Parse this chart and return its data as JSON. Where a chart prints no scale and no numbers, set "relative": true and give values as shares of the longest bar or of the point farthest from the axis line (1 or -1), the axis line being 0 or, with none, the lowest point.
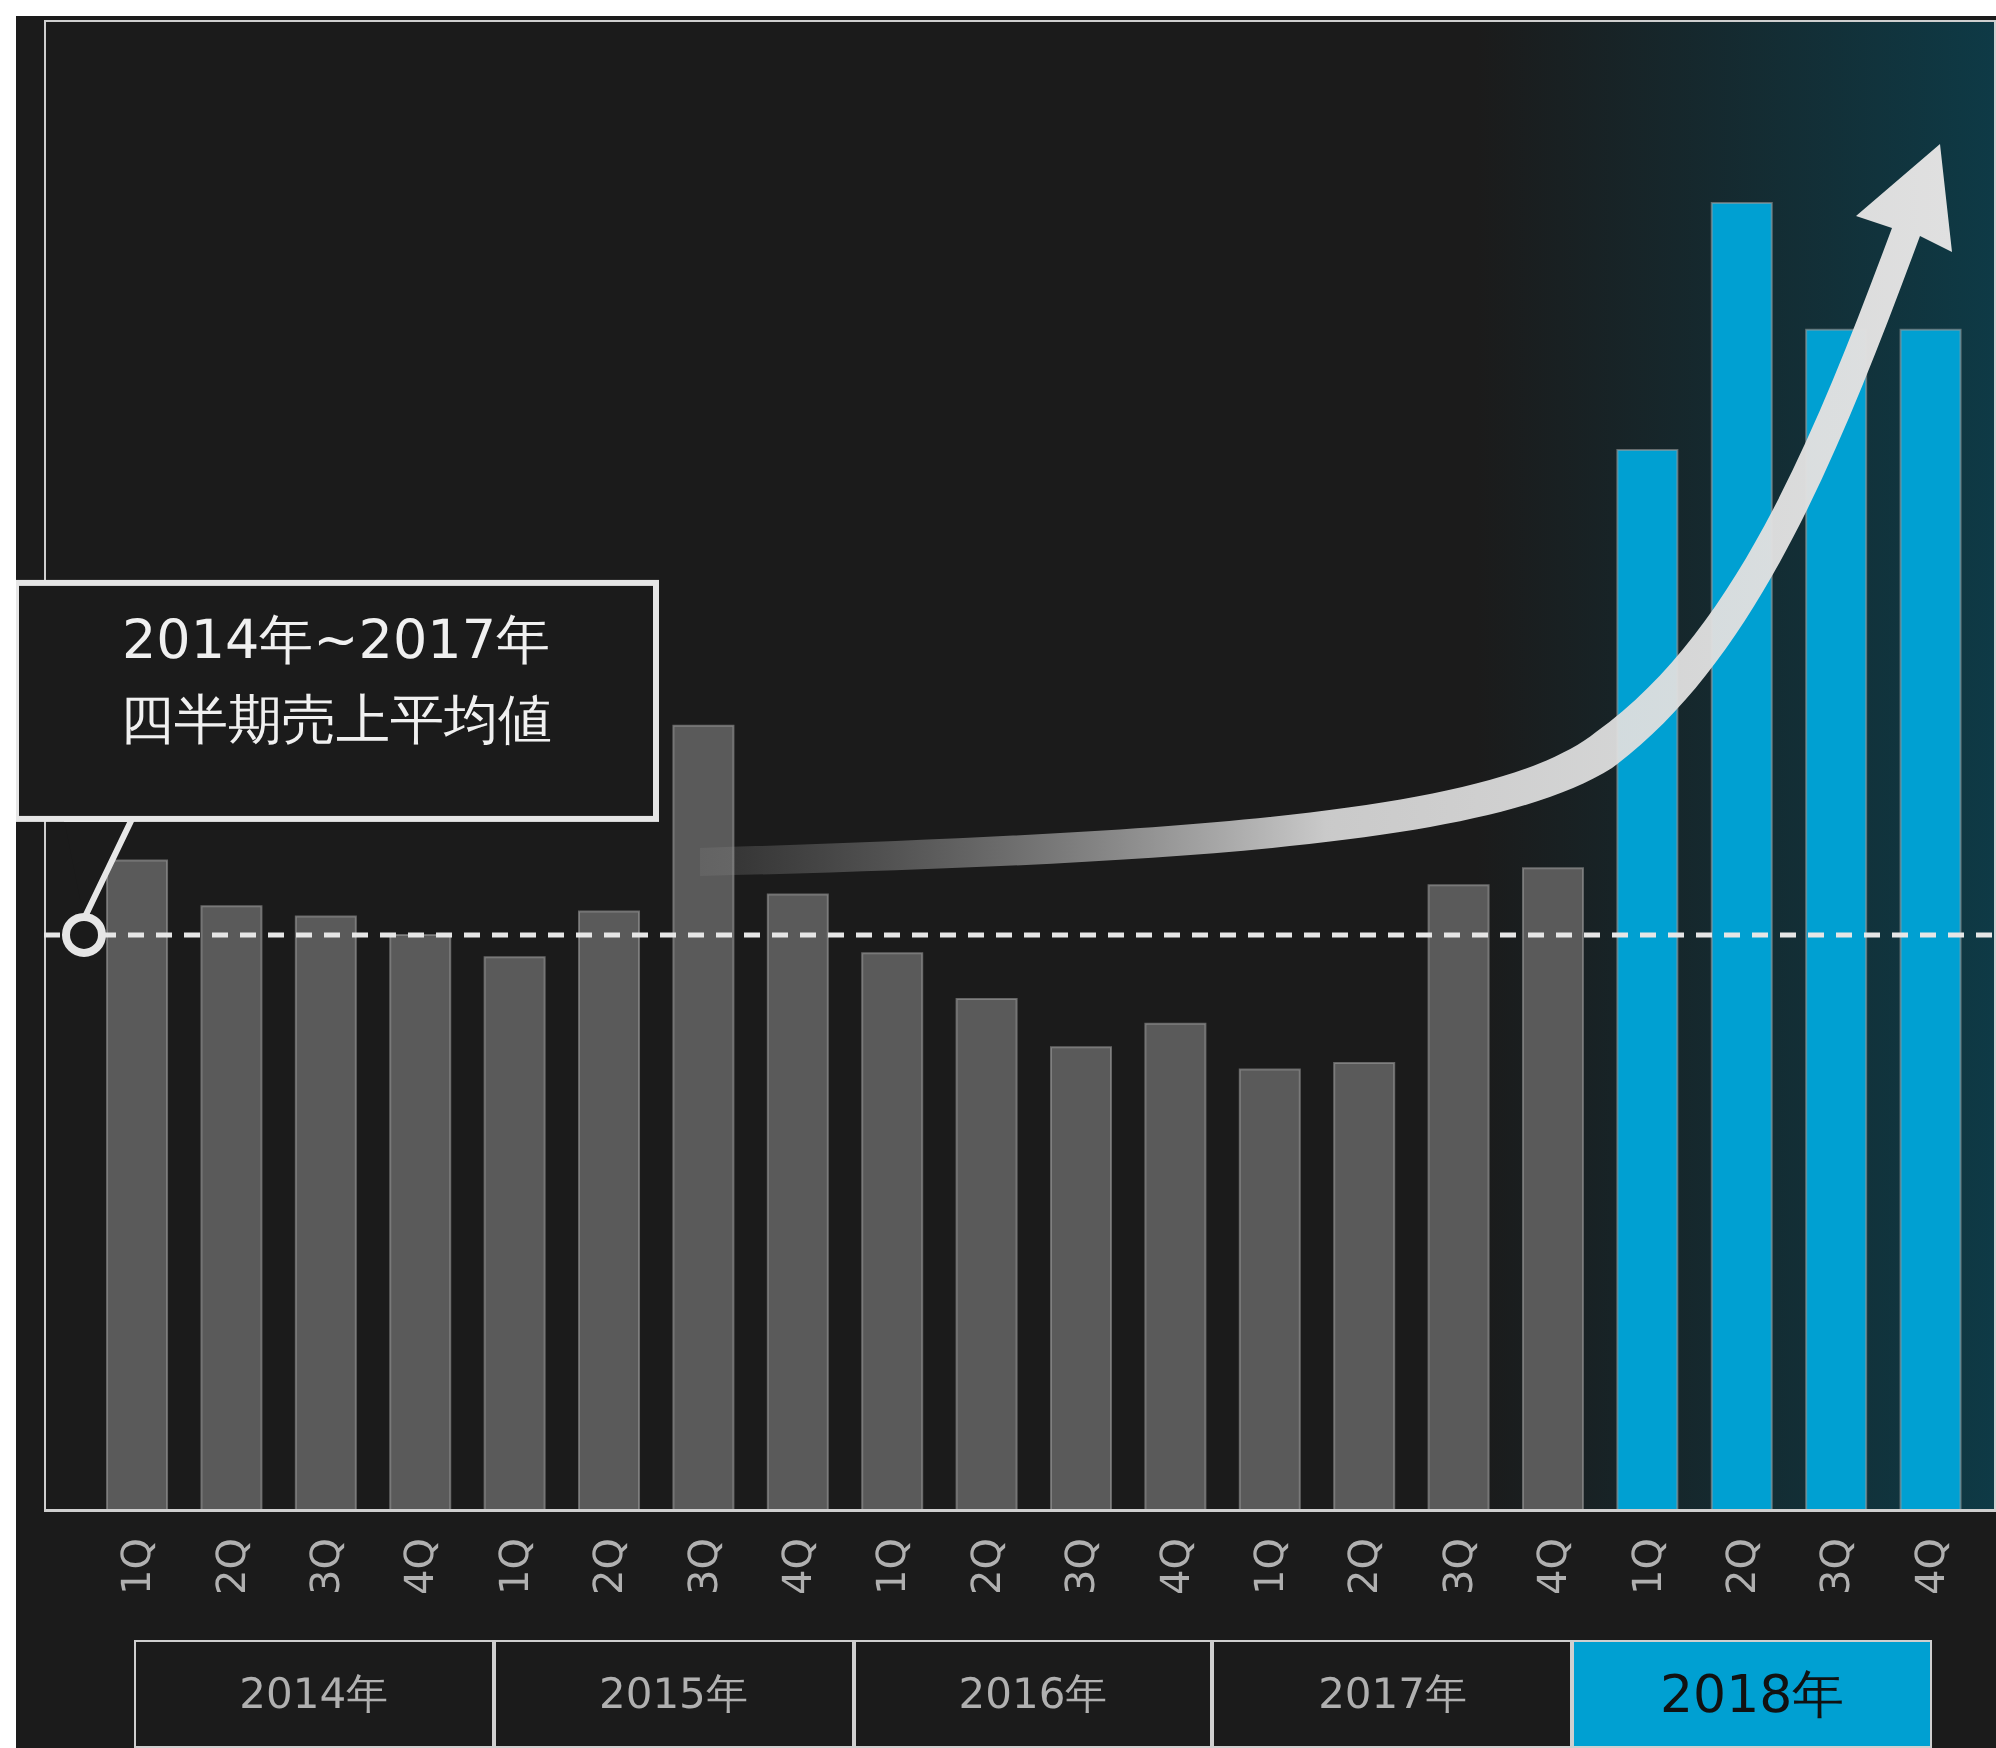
{
  "chart_data": {
    "type": "bar",
    "relative": true,
    "categories": [
      "1Q",
      "2Q",
      "3Q",
      "4Q",
      "1Q",
      "2Q",
      "3Q",
      "4Q",
      "1Q",
      "2Q",
      "3Q",
      "4Q",
      "1Q",
      "2Q",
      "3Q",
      "4Q",
      "1Q",
      "2Q",
      "3Q",
      "4Q"
    ],
    "values": [
      0.497,
      0.462,
      0.454,
      0.44,
      0.423,
      0.458,
      0.6,
      0.471,
      0.426,
      0.391,
      0.354,
      0.372,
      0.337,
      0.342,
      0.478,
      0.491,
      0.811,
      1,
      0.903,
      0.903
    ],
    "colors": [
      "#5a5a5a",
      "#5a5a5a",
      "#5a5a5a",
      "#5a5a5a",
      "#5a5a5a",
      "#5a5a5a",
      "#5a5a5a",
      "#5a5a5a",
      "#5a5a5a",
      "#5a5a5a",
      "#5a5a5a",
      "#5a5a5a",
      "#5a5a5a",
      "#5a5a5a",
      "#5a5a5a",
      "#5a5a5a",
      "#00a0d2",
      "#00a0d2",
      "#00a0d2",
      "#00a0d2"
    ],
    "ref_lines": [
      {
        "axis": "y",
        "value": 0.44,
        "label": "2014年~2017年四半期売上平均値",
        "color": "#e6e6e6",
        "line_style": "dashed"
      }
    ],
    "annotations": [
      "2014年",
      "2015年",
      "2016年",
      "2017年",
      "2018年"
    ]
  }
}
